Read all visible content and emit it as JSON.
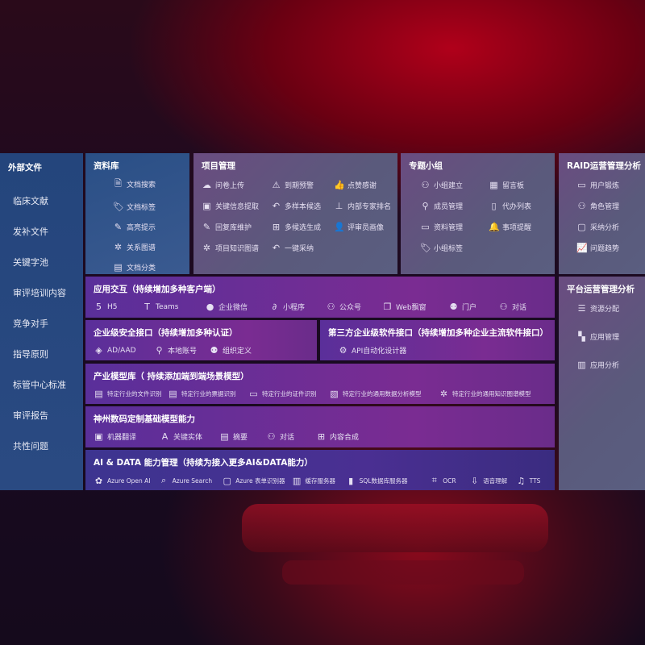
{
  "sidebar": {
    "title": "外部文件",
    "items": [
      "临床文献",
      "发补文件",
      "关键字池",
      "审评培训内容",
      "竞争对手",
      "指导原则",
      "标管中心标准",
      "审评报告",
      "共性问题"
    ]
  },
  "library": {
    "title": "资料库",
    "items": [
      {
        "icon": "doc-search",
        "label": "文档搜索"
      },
      {
        "icon": "tag",
        "label": "文档标签"
      },
      {
        "icon": "highlight-pen",
        "label": "高亮提示"
      },
      {
        "icon": "graph",
        "label": "关系图谱"
      },
      {
        "icon": "doc-category",
        "label": "文档分类"
      }
    ]
  },
  "project": {
    "title": "项目管理",
    "items": [
      {
        "icon": "cloud-upload",
        "label": "问卷上传"
      },
      {
        "icon": "alarm",
        "label": "到期预警"
      },
      {
        "icon": "thumbs-up",
        "label": "点赞感谢"
      },
      {
        "icon": "extract",
        "label": "关键信息提取"
      },
      {
        "icon": "reply",
        "label": "多样本候选"
      },
      {
        "icon": "ranking",
        "label": "内部专家排名"
      },
      {
        "icon": "pen",
        "label": "回复库维护"
      },
      {
        "icon": "puzzle",
        "label": "多候选生成"
      },
      {
        "icon": "person",
        "label": "评审员画像"
      },
      {
        "icon": "graph",
        "label": "项目知识图谱"
      },
      {
        "icon": "reply",
        "label": "一键采纳"
      }
    ]
  },
  "group": {
    "title": "专题小组",
    "items": [
      {
        "icon": "users",
        "label": "小组建立"
      },
      {
        "icon": "bbs",
        "label": "留言板"
      },
      {
        "icon": "user-add",
        "label": "成员管理"
      },
      {
        "icon": "clipboard",
        "label": "代办列表"
      },
      {
        "icon": "folder",
        "label": "资料管理"
      },
      {
        "icon": "bell",
        "label": "事项提醒"
      },
      {
        "icon": "tag",
        "label": "小组标签"
      }
    ]
  },
  "raid": {
    "title": "RAID运营管理分析",
    "items": [
      {
        "icon": "id-card",
        "label": "用户锻炼"
      },
      {
        "icon": "users",
        "label": "角色管理"
      },
      {
        "icon": "qa",
        "label": "采纳分析"
      },
      {
        "icon": "trend",
        "label": "问题趋势"
      }
    ]
  },
  "platform": {
    "title": "平台运营管理分析",
    "items": [
      {
        "icon": "list",
        "label": "资源分配"
      },
      {
        "icon": "apps",
        "label": "应用管理"
      },
      {
        "icon": "analysis",
        "label": "应用分析"
      }
    ]
  },
  "app": {
    "title": "应用交互（持续增加多种客户端）",
    "items": [
      {
        "icon": "html5",
        "label": "H5"
      },
      {
        "icon": "teams",
        "label": "Teams"
      },
      {
        "icon": "wechat-work",
        "label": "企业微信"
      },
      {
        "icon": "mini-program",
        "label": "小程序"
      },
      {
        "icon": "users",
        "label": "公众号"
      },
      {
        "icon": "window",
        "label": "Web飘窗"
      },
      {
        "icon": "portal",
        "label": "门户"
      },
      {
        "icon": "chat",
        "label": "对话"
      }
    ]
  },
  "security": {
    "title": "企业级安全接口（持续增加多种认证）",
    "items": [
      {
        "icon": "ad",
        "label": "AD/AAD"
      },
      {
        "icon": "user-local",
        "label": "本地账号"
      },
      {
        "icon": "org",
        "label": "组织定义"
      }
    ]
  },
  "thirdparty": {
    "title": "第三方企业级软件接口（持续增加多种企业主流软件接口）",
    "items": [
      {
        "icon": "gear",
        "label": "API自动化设计器"
      }
    ]
  },
  "industry": {
    "title": "产业模型库（ 持续添加端到端场景模型）",
    "items": [
      {
        "icon": "doc",
        "label": "特定行业的文件识别"
      },
      {
        "icon": "receipt",
        "label": "特定行业的票据识别"
      },
      {
        "icon": "id-card",
        "label": "特定行业的证件识别"
      },
      {
        "icon": "chart",
        "label": "特定行业的通用数据分析模型"
      },
      {
        "icon": "graph",
        "label": "特定行业的通用知识图谱模型"
      }
    ]
  },
  "base": {
    "title": "神州数码定制基础模型能力",
    "items": [
      {
        "icon": "translate",
        "label": "机器翻译"
      },
      {
        "icon": "entity",
        "label": "关键实体"
      },
      {
        "icon": "summary",
        "label": "摘要"
      },
      {
        "icon": "chat",
        "label": "对话"
      },
      {
        "icon": "puzzle",
        "label": "内容合成"
      }
    ]
  },
  "ai": {
    "title": "AI & DATA 能力管理（持续为接入更多AI&DATA能力）",
    "items": [
      {
        "icon": "openai",
        "label": "Azure Open AI"
      },
      {
        "icon": "search",
        "label": "Azure Search"
      },
      {
        "icon": "form",
        "label": "Azure 表单识别器"
      },
      {
        "icon": "cache",
        "label": "缓存服务器"
      },
      {
        "icon": "sql",
        "label": "SQL数据库服务器"
      },
      {
        "icon": "ocr",
        "label": "OCR"
      },
      {
        "icon": "speech",
        "label": "语音理解"
      },
      {
        "icon": "tts",
        "label": "TTS"
      }
    ]
  }
}
